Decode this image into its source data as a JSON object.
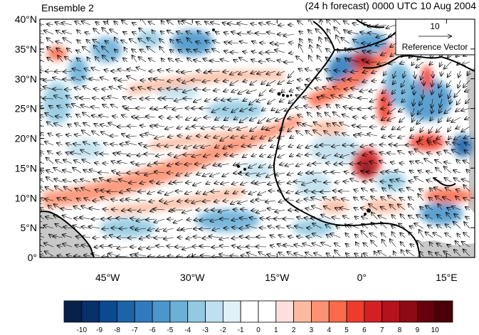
{
  "header": {
    "left_title": "Ensemble 2",
    "right_title": "(24 h forecast) 0000 UTC 10 Aug 2004"
  },
  "axes": {
    "lat_labels": [
      "0°",
      "5°N",
      "10°N",
      "15°N",
      "20°N",
      "25°N",
      "30°N",
      "35°N",
      "40°N"
    ],
    "lat_values": [
      0,
      5,
      10,
      15,
      20,
      25,
      30,
      35,
      40
    ],
    "lon_labels": [
      "45°W",
      "30°W",
      "15°W",
      "0°",
      "15°E"
    ],
    "lon_values": [
      -45,
      -30,
      -15,
      0,
      15
    ],
    "lon_range": [
      -57,
      20
    ],
    "lat_range": [
      0,
      40
    ]
  },
  "reference_vector": {
    "magnitude": "10",
    "label": "Reference Vector"
  },
  "colorbar": {
    "labels": [
      "-10",
      "-9",
      "-8",
      "-7",
      "-6",
      "-5",
      "-4",
      "-3",
      "-2",
      "-1",
      "0",
      "1",
      "2",
      "3",
      "4",
      "5",
      "6",
      "7",
      "8",
      "9",
      "10"
    ],
    "colors": [
      "#08214a",
      "#08306b",
      "#0a4a8f",
      "#1c63a8",
      "#2f7bbd",
      "#4b96cb",
      "#6cb0d8",
      "#93c9e1",
      "#bfe0ee",
      "#e1f1f8",
      "#ffffff",
      "#ffffff",
      "#fde0dd",
      "#fcbba1",
      "#fc9272",
      "#fb6a4a",
      "#ef3b2c",
      "#d42024",
      "#b5121b",
      "#8e0a14",
      "#67000d",
      "#4a0009"
    ]
  },
  "map_style": {
    "land_mask_color": "#c8c8c8",
    "coastline_color": "#000000",
    "vector_color": "#000000"
  }
}
